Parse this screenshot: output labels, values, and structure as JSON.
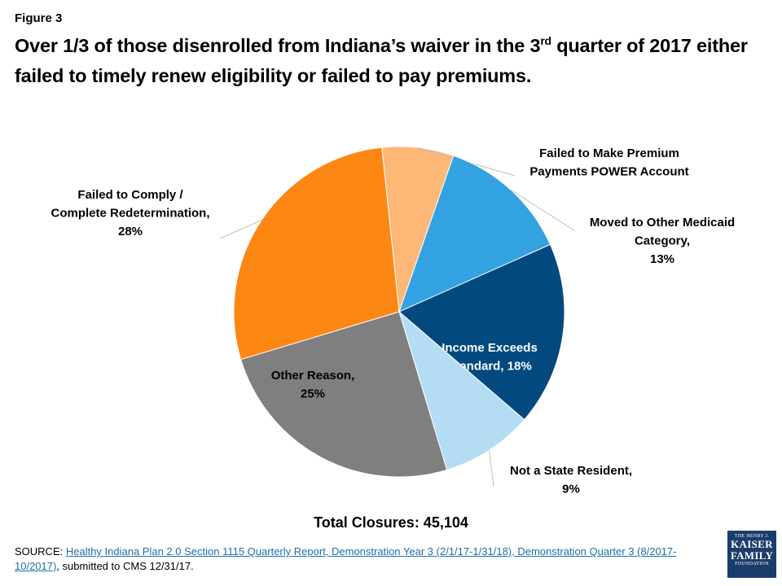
{
  "figure_label": "Figure 3",
  "title": {
    "part1": "Over 1/3 of those disenrolled from Indiana’s waiver in the 3",
    "sup": "rd",
    "part2": " quarter of 2017 either failed to timely renew eligibility or failed to pay premiums."
  },
  "chart_data": {
    "type": "pie",
    "start_angle_deg": -6,
    "slices": [
      {
        "label_lines": [
          "Failed to Make Premium",
          "Payments POWER Account"
        ],
        "value": 7,
        "color": "#FDB777"
      },
      {
        "label_lines": [
          "Moved to Other Medicaid",
          "Category,",
          "13%"
        ],
        "value": 13,
        "color": "#33A2E1"
      },
      {
        "label_lines": [
          "Income Exceeds",
          "Standard, 18%"
        ],
        "value": 18,
        "color": "#02497F"
      },
      {
        "label_lines": [
          "Not a State Resident,",
          "9%"
        ],
        "value": 9,
        "color": "#B4DDF3"
      },
      {
        "label_lines": [
          "Other Reason,",
          "25%"
        ],
        "value": 25,
        "color": "#7F7F7F"
      },
      {
        "label_lines": [
          "Failed to Comply /",
          "Complete Redetermination,",
          "28%"
        ],
        "value": 28,
        "color": "#FC8713"
      }
    ]
  },
  "total": "Total Closures: 45,104",
  "source": {
    "prefix": "SOURCE:  ",
    "link": "Healthy Indiana Plan 2.0 Section 1115 Quarterly Report, Demonstration Year 3 (2/1/17-1/31/18), Demonstration Quarter 3 (8/2017-10/2017)",
    "suffix": ", submitted to CMS 12/31/17."
  },
  "logo": {
    "line1": "THE HENRY J.",
    "line2": "KAISER",
    "line3": "FAMILY",
    "line4": "FOUNDATION"
  }
}
